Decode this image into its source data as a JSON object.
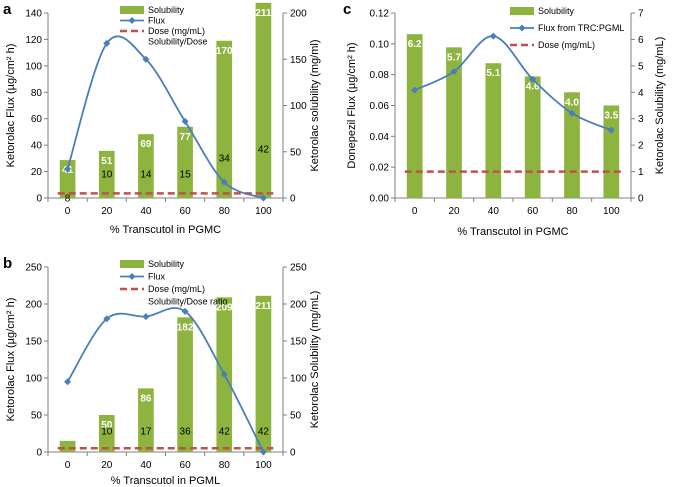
{
  "colors": {
    "bar": "#8db43f",
    "flux": "#4a7ebb",
    "dose": "#c0504d",
    "axis": "#808080"
  },
  "chart_data": [
    {
      "panel": "a",
      "type": "bar",
      "x": [
        0,
        20,
        40,
        60,
        80,
        100
      ],
      "xlabel": "% Transcutol in PGMC",
      "ylabel_left": "Ketorolac Flux (µg/cm² h)",
      "ylabel_right": "Ketorolac solubility (mg/ml)",
      "ylim_left": [
        0,
        140
      ],
      "yticks_left": [
        0,
        20,
        40,
        60,
        80,
        100,
        120,
        140
      ],
      "ylim_right": [
        0,
        200
      ],
      "yticks_right": [
        0,
        50,
        100,
        150,
        200
      ],
      "series": [
        {
          "name": "Solubility",
          "type": "bar",
          "axis": "right",
          "values": [
            41,
            51,
            69,
            77,
            170,
            211
          ],
          "labels": [
            "41",
            "51",
            "69",
            "77",
            "170",
            "211"
          ]
        },
        {
          "name": "Flux",
          "type": "line",
          "axis": "left",
          "values": [
            22,
            117,
            105,
            58,
            12,
            0
          ]
        },
        {
          "name": "Dose (mg/mL)",
          "type": "dashed",
          "axis": "right",
          "values": [
            5,
            5,
            5,
            5,
            5,
            5
          ]
        },
        {
          "name": "Solubility/Dose",
          "type": "text",
          "values": [
            "8",
            "10",
            "14",
            "15",
            "34",
            "42"
          ]
        }
      ]
    },
    {
      "panel": "b",
      "type": "bar",
      "x": [
        0,
        20,
        40,
        60,
        80,
        100
      ],
      "xlabel": "% Transcutol in PGML",
      "ylabel_left": "Ketorolac Flux (µg/cm² h)",
      "ylabel_right": "Ketorolac Solubility (mg/mL)",
      "ylim_left": [
        0,
        250
      ],
      "yticks_left": [
        0,
        50,
        100,
        150,
        200,
        250
      ],
      "ylim_right": [
        0,
        250
      ],
      "yticks_right": [
        0,
        50,
        100,
        150,
        200,
        250
      ],
      "series": [
        {
          "name": "Solubility",
          "type": "bar",
          "axis": "right",
          "values": [
            15,
            50,
            86,
            182,
            209,
            211
          ],
          "labels": [
            "",
            "50",
            "86",
            "182",
            "209",
            "211"
          ]
        },
        {
          "name": "Flux",
          "type": "line",
          "axis": "left",
          "values": [
            95,
            180,
            183,
            190,
            105,
            0
          ]
        },
        {
          "name": "Dose (mg/mL)",
          "type": "dashed",
          "axis": "right",
          "values": [
            5,
            5,
            5,
            5,
            5,
            5
          ]
        },
        {
          "name": "Solubility/Dose ratio",
          "type": "text",
          "values": [
            "",
            "10",
            "17",
            "36",
            "42",
            "42"
          ]
        }
      ]
    },
    {
      "panel": "c",
      "type": "bar",
      "x": [
        0,
        20,
        40,
        60,
        80,
        100
      ],
      "xlabel": "% Transcutol in PGMC",
      "ylabel_left": "Donepezil Flux (µg/cm² h)",
      "ylabel_right": "Ketorolac Solubility (mg/mL)",
      "ylim_left": [
        0,
        0.12
      ],
      "yticks_left": [
        "0.00",
        "0.02",
        "0.04",
        "0.06",
        "0.08",
        "0.10",
        "0.12"
      ],
      "ylim_right": [
        0,
        7
      ],
      "yticks_right": [
        0,
        1,
        2,
        3,
        4,
        5,
        6,
        7
      ],
      "series": [
        {
          "name": "Solubility",
          "type": "bar",
          "axis": "right",
          "values": [
            6.2,
            5.7,
            5.1,
            4.6,
            4.0,
            3.5
          ],
          "labels": [
            "6.2",
            "5.7",
            "5.1",
            "4.6",
            "4.0",
            "3.5"
          ]
        },
        {
          "name": "Flux from TRC:PGML",
          "type": "line",
          "axis": "left",
          "values": [
            0.07,
            0.082,
            0.105,
            0.077,
            0.055,
            0.044
          ]
        },
        {
          "name": "Dose (mg/mL)",
          "type": "dashed",
          "axis": "right",
          "values": [
            1,
            1,
            1,
            1,
            1,
            1
          ]
        }
      ]
    }
  ]
}
